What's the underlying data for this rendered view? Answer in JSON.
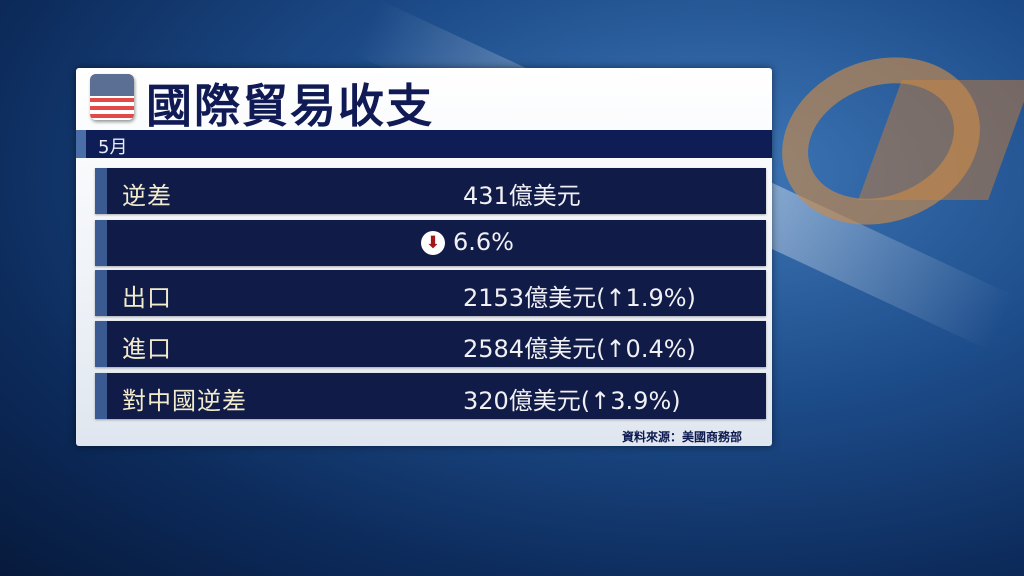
{
  "title": "國際貿易收支",
  "period": "5月",
  "flag_icon": "us-flag-icon",
  "rows": [
    {
      "label": "逆差",
      "value": "431億美元"
    },
    {
      "label": "",
      "value": "6.6%",
      "icon": "down-arrow-icon"
    },
    {
      "label": "出口",
      "value": "2153億美元(↑1.9%)"
    },
    {
      "label": "進口",
      "value": "2584億美元(↑0.4%)"
    },
    {
      "label": "對中國逆差",
      "value": "320億美元(↑3.9%)"
    }
  ],
  "source": "資料來源：美國商務部",
  "colors": {
    "navy": "#111b48",
    "accent": "#3c5a92",
    "label": "#f3eccc",
    "down": "#a01818"
  }
}
